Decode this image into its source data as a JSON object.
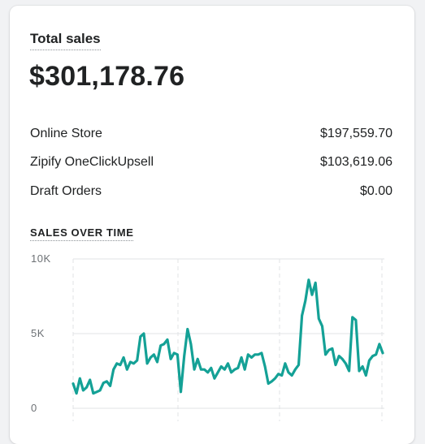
{
  "card": {
    "title": "Total sales",
    "total": "$301,178.76",
    "breakdown": [
      {
        "label": "Online Store",
        "value": "$197,559.70"
      },
      {
        "label": "Zipify OneClickUpsell",
        "value": "$103,619.06"
      },
      {
        "label": "Draft Orders",
        "value": "$0.00"
      }
    ],
    "section_label": "SALES OVER TIME"
  },
  "colors": {
    "line": "#14a196",
    "grid": "#e1e3e5",
    "axis_text": "#6d7175"
  },
  "chart_data": {
    "type": "line",
    "title": "",
    "xlabel": "",
    "ylabel": "",
    "ylim": [
      0,
      10000
    ],
    "y_ticks": [
      0,
      5000,
      10000
    ],
    "y_tick_labels": [
      "0",
      "5K",
      "10K"
    ],
    "grid": true,
    "series": [
      {
        "values": [
          1650,
          1000,
          2000,
          1200,
          1400,
          1900,
          1000,
          1100,
          1200,
          1700,
          1800,
          1500,
          2600,
          3000,
          2900,
          3400,
          2600,
          3100,
          3000,
          3200,
          4800,
          5000,
          3000,
          3400,
          3600,
          3100,
          4200,
          4300,
          4600,
          3300,
          3700,
          3600,
          1100,
          3500,
          5300,
          4300,
          2600,
          3300,
          2600,
          2600,
          2400,
          2700,
          2000,
          2400,
          2800,
          2600,
          3000,
          2400,
          2600,
          2700,
          3400,
          2600,
          3600,
          3400,
          3600,
          3600,
          3700,
          2800,
          1650,
          1800,
          2000,
          2300,
          2200,
          3000,
          2400,
          2200,
          2600,
          2900,
          6200,
          7200,
          8600,
          7600,
          8400,
          6000,
          5500,
          3600,
          3900,
          4000,
          2900,
          3500,
          3300,
          3000,
          2500,
          6100,
          5900,
          2500,
          2800,
          2200,
          3200,
          3500,
          3600,
          4300,
          3700
        ]
      }
    ]
  }
}
